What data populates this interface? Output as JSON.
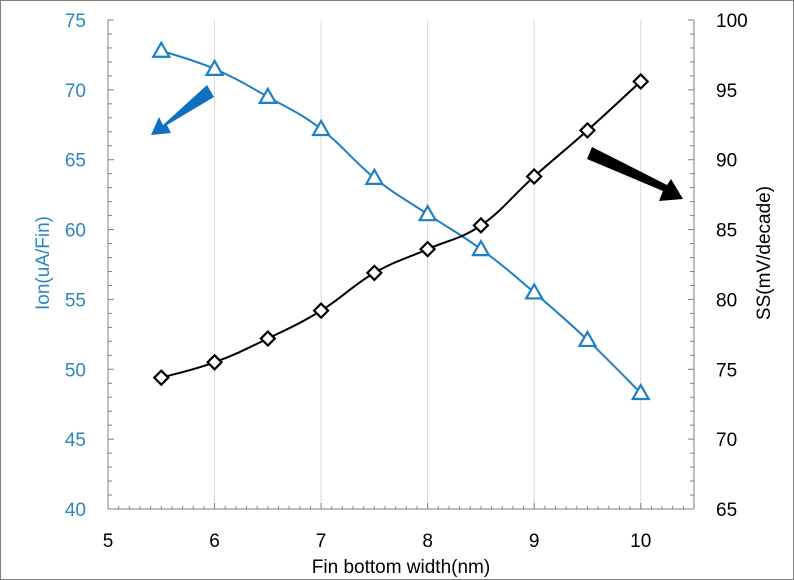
{
  "colors": {
    "ion_series": "#1f7fc4",
    "ion_axis_text": "#2e86c1",
    "ss_series": "#000000",
    "arrow_left": "#1070c0",
    "arrow_right": "#000000"
  },
  "chart_data": {
    "type": "line",
    "title": "",
    "xlabel": "Fin bottom width(nm)",
    "ylabel_left": "Ion(uA/Fin)",
    "ylabel_right": "SS(mV/decade)",
    "xlim": [
      5,
      10.5
    ],
    "ylim_left": [
      40,
      75
    ],
    "ylim_right": [
      65,
      100
    ],
    "x_ticks": [
      5,
      6,
      7,
      8,
      9,
      10
    ],
    "x_tick_labels": [
      "5",
      "6",
      "7",
      "8",
      "9",
      "10"
    ],
    "y_left_ticks": [
      40,
      45,
      50,
      55,
      60,
      65,
      70,
      75
    ],
    "y_left_tick_labels": [
      "40",
      "45",
      "50",
      "55",
      "60",
      "65",
      "70",
      "75"
    ],
    "y_right_ticks": [
      65,
      70,
      75,
      80,
      85,
      90,
      95,
      100
    ],
    "y_right_tick_labels": [
      "65",
      "70",
      "75",
      "80",
      "85",
      "90",
      "95",
      "100"
    ],
    "grid": "vertical lines at x ticks",
    "legend": "none",
    "annotations": [
      {
        "type": "arrow",
        "meaning": "Ion curve uses left axis",
        "direction": "down-left"
      },
      {
        "type": "arrow",
        "meaning": "SS curve uses right axis",
        "direction": "down-right"
      }
    ],
    "series": [
      {
        "axis": "left",
        "marker": "triangle",
        "x": [
          5.5,
          6,
          6.5,
          7,
          7.5,
          8,
          8.5,
          9,
          9.5,
          10
        ],
        "values": [
          72.8,
          71.5,
          69.5,
          67.2,
          63.7,
          61.1,
          58.6,
          55.5,
          52.1,
          48.3
        ]
      },
      {
        "axis": "right",
        "marker": "diamond",
        "x": [
          5.5,
          6,
          6.5,
          7,
          7.5,
          8,
          8.5,
          9,
          9.5,
          10
        ],
        "values": [
          74.4,
          75.5,
          77.2,
          79.2,
          81.9,
          83.6,
          85.3,
          88.8,
          92.1,
          95.6
        ]
      }
    ]
  }
}
